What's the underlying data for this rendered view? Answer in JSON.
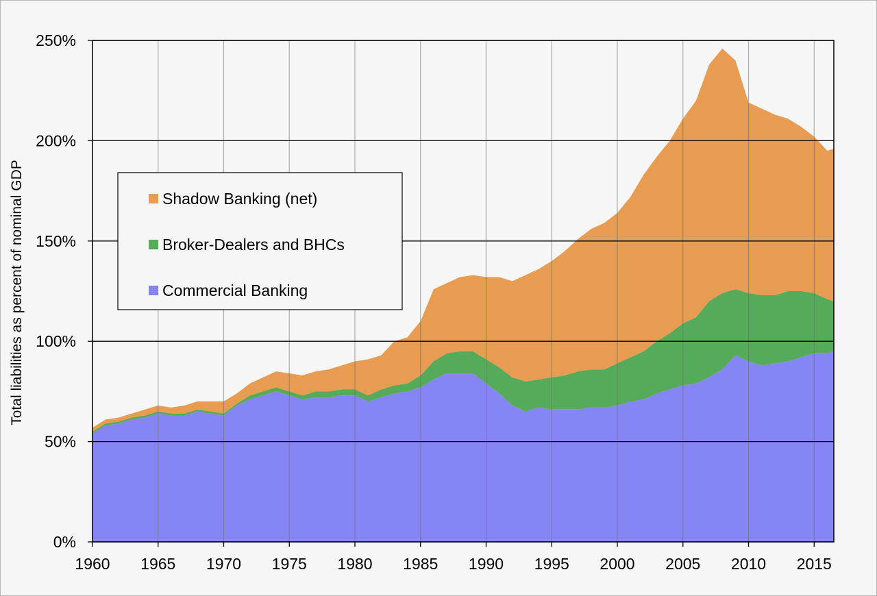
{
  "chart_data": {
    "type": "area",
    "stacked": true,
    "title": "",
    "xlabel": "",
    "ylabel": "Total liabilities as percent of nominal GDP",
    "xlim": [
      1960,
      2016.5
    ],
    "ylim": [
      0,
      250
    ],
    "x_ticks": [
      "1960",
      "1965",
      "1970",
      "1975",
      "1980",
      "1985",
      "1990",
      "1995",
      "2000",
      "2005",
      "2010",
      "2015"
    ],
    "y_ticks": [
      "0%",
      "50%",
      "100%",
      "150%",
      "200%",
      "250%"
    ],
    "grid": true,
    "legend_position": "upper-left",
    "x": [
      1960,
      1961,
      1962,
      1963,
      1964,
      1965,
      1966,
      1967,
      1968,
      1969,
      1970,
      1971,
      1972,
      1973,
      1974,
      1975,
      1976,
      1977,
      1978,
      1979,
      1980,
      1981,
      1982,
      1983,
      1984,
      1985,
      1986,
      1987,
      1988,
      1989,
      1990,
      1991,
      1992,
      1993,
      1994,
      1995,
      1996,
      1997,
      1998,
      1999,
      2000,
      2001,
      2002,
      2003,
      2004,
      2005,
      2006,
      2007,
      2008,
      2009,
      2010,
      2011,
      2012,
      2013,
      2014,
      2015,
      2016,
      2016.5
    ],
    "series": [
      {
        "name": "Commercial Banking",
        "color": "#8585f5",
        "values": [
          54,
          58,
          59,
          61,
          62,
          64,
          63,
          63,
          65,
          64,
          63,
          68,
          71,
          73,
          75,
          73,
          71,
          72,
          72,
          73,
          73,
          70,
          72,
          74,
          75,
          77,
          81,
          84,
          84,
          84,
          79,
          74,
          68,
          65,
          67,
          66,
          66,
          66,
          67,
          67,
          68,
          70,
          71,
          74,
          76,
          78,
          79,
          82,
          86,
          93,
          90,
          88,
          89,
          90,
          92,
          94,
          94,
          95
        ]
      },
      {
        "name": "Broker-Dealers and BHCs",
        "color": "#56ab5a",
        "values": [
          1,
          1,
          1,
          1,
          1,
          1,
          1,
          1,
          1,
          1,
          1,
          1,
          2,
          2,
          2,
          2,
          2,
          3,
          3,
          3,
          3,
          3,
          4,
          4,
          4,
          6,
          9,
          10,
          11,
          11,
          12,
          13,
          14,
          15,
          14,
          16,
          17,
          19,
          19,
          19,
          21,
          22,
          24,
          26,
          28,
          31,
          33,
          38,
          38,
          33,
          34,
          35,
          34,
          35,
          33,
          30,
          27,
          25
        ]
      },
      {
        "name": "Shadow Banking (net)",
        "color": "#e79c52",
        "values": [
          2,
          2,
          2,
          2,
          3,
          3,
          3,
          4,
          4,
          5,
          6,
          5,
          6,
          7,
          8,
          9,
          10,
          10,
          11,
          12,
          14,
          18,
          17,
          22,
          23,
          27,
          36,
          35,
          37,
          38,
          41,
          45,
          48,
          53,
          55,
          58,
          62,
          66,
          70,
          73,
          75,
          80,
          88,
          92,
          96,
          102,
          108,
          118,
          122,
          114,
          95,
          93,
          90,
          86,
          82,
          78,
          74,
          76
        ]
      }
    ]
  }
}
